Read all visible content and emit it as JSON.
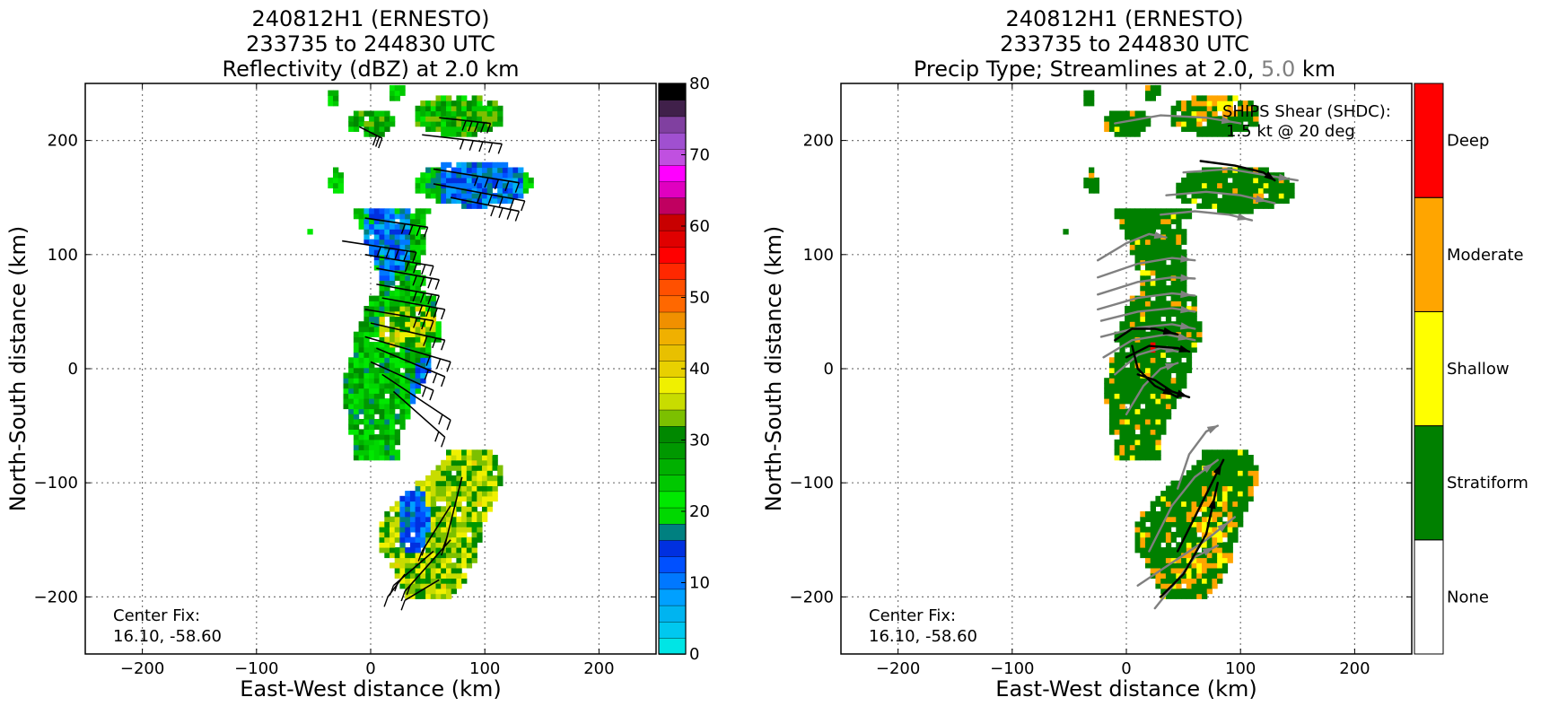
{
  "left_panel": {
    "title": [
      "240812H1 (ERNESTO)",
      "233735 to 244830 UTC",
      "Reflectivity (dBZ) at 2.0 km"
    ],
    "xlabel": "East-West distance (km)",
    "ylabel": "North-South distance (km)",
    "center_fix": [
      "Center Fix:",
      "16.10, -58.60"
    ]
  },
  "right_panel": {
    "title": [
      "240812H1 (ERNESTO)",
      "233735 to 244830 UTC"
    ],
    "title_line3_parts": [
      "Precip Type; Streamlines at 2.0, ",
      "5.0",
      " km"
    ],
    "title_line3_colors": [
      "#000000",
      "#808080",
      "#000000"
    ],
    "xlabel": "East-West distance (km)",
    "ylabel": "North-South distance (km)",
    "center_fix": [
      "Center Fix:",
      "16.10, -58.60"
    ],
    "shear_note": [
      "SHIPS Shear (SHDC):",
      "1.5 kt @ 20 deg"
    ]
  },
  "chart_data": [
    {
      "type": "heatmap",
      "title": "240812H1 (ERNESTO) 233735 to 244830 UTC Reflectivity (dBZ) at 2.0 km",
      "xlabel": "East-West distance (km)",
      "ylabel": "North-South distance (km)",
      "xlim": [
        -250,
        250
      ],
      "ylim": [
        -250,
        250
      ],
      "xticks": [
        -200,
        -100,
        0,
        100,
        200
      ],
      "yticks": [
        -200,
        -100,
        0,
        100,
        200
      ],
      "grid": true,
      "colorbar": {
        "min": 0,
        "max": 80,
        "tick_values": [
          0,
          10,
          20,
          30,
          40,
          50,
          60,
          70,
          80
        ],
        "tick_labels": [
          "0",
          "10",
          "20",
          "30",
          "40",
          "50",
          "60",
          "70",
          "80"
        ],
        "colors": [
          "#00e5e5",
          "#00c8ef",
          "#00b4f0",
          "#00a0ff",
          "#0078ff",
          "#0050ff",
          "#0030e0",
          "#008080",
          "#00d800",
          "#00e800",
          "#00c800",
          "#00b000",
          "#009800",
          "#008800",
          "#7cc000",
          "#c8dc00",
          "#f0f000",
          "#e8d000",
          "#e8c000",
          "#f0b000",
          "#f09000",
          "#ff6800",
          "#ff5000",
          "#ff2800",
          "#ff0000",
          "#e00000",
          "#c80000",
          "#c00060",
          "#e000c0",
          "#ff00ff",
          "#c050e0",
          "#a050d0",
          "#8040a0",
          "#40204a",
          "#000000"
        ]
      },
      "echo_regions_dbz": [
        {
          "x": [
            -40,
            60
          ],
          "y": [
            -80,
            140
          ],
          "dominant_dbz": 22
        },
        {
          "x": [
            20,
            100
          ],
          "y": [
            -200,
            -75
          ],
          "dominant_dbz": 32
        },
        {
          "x": [
            40,
            145
          ],
          "y": [
            140,
            180
          ],
          "dominant_dbz": 15
        },
        {
          "x": [
            -20,
            130
          ],
          "y": [
            200,
            250
          ],
          "dominant_dbz": 28
        }
      ],
      "wind_barbs": "present",
      "center_fix": [
        16.1,
        -58.6
      ]
    },
    {
      "type": "heatmap",
      "title": "240812H1 (ERNESTO) 233735 to 244830 UTC Precip Type; Streamlines at 2.0, 5.0 km",
      "xlabel": "East-West distance (km)",
      "ylabel": "North-South distance (km)",
      "xlim": [
        -250,
        250
      ],
      "ylim": [
        -250,
        250
      ],
      "xticks": [
        -200,
        -100,
        0,
        100,
        200
      ],
      "yticks": [
        -200,
        -100,
        0,
        100,
        200
      ],
      "grid": true,
      "categories": [
        "None",
        "Stratiform",
        "Shallow",
        "Moderate",
        "Deep"
      ],
      "category_colors": [
        "#ffffff",
        "#008000",
        "#ffff00",
        "#ffa500",
        "#ff0000"
      ],
      "streamlines": [
        {
          "level": "2.0 km",
          "color": "#000000"
        },
        {
          "level": "5.0 km",
          "color": "#808080"
        }
      ],
      "shear": {
        "label": "SHIPS Shear (SHDC):",
        "speed_kt": 1.5,
        "direction_deg": 20
      },
      "center_fix": [
        16.1,
        -58.6
      ]
    }
  ]
}
